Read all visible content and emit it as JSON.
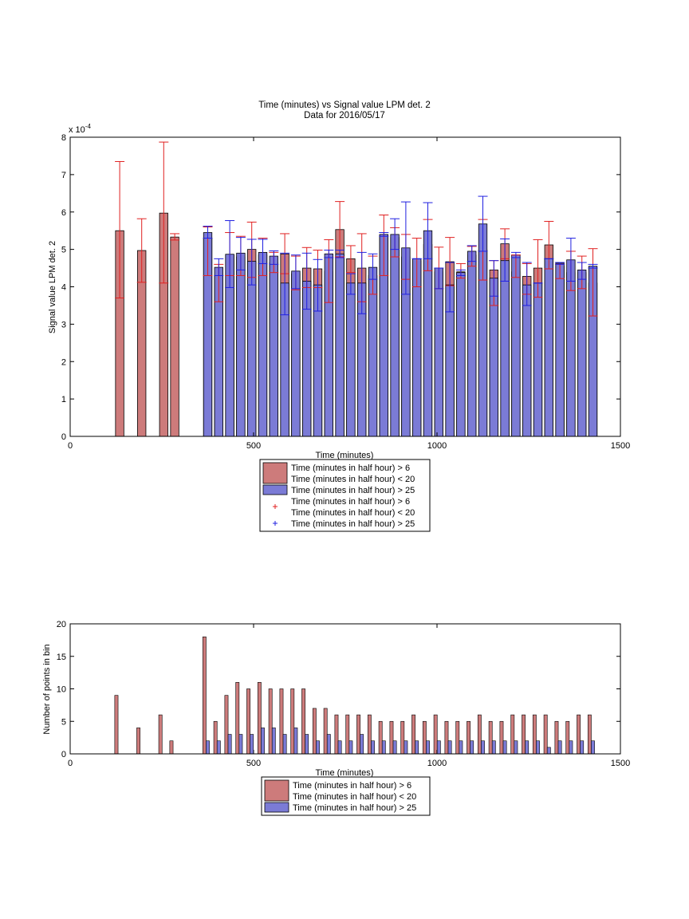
{
  "chart_data": [
    {
      "type": "bar",
      "title": "Time (minutes) vs Signal value LPM det. 2",
      "subtitle": "Data for 2016/05/17",
      "xlabel": "Time (minutes)",
      "ylabel": "Signal value LPM det. 2",
      "y_exponent": "x 10",
      "y_exponent_power": "-4",
      "xlim": [
        0,
        1500
      ],
      "ylim": [
        0,
        8
      ],
      "x_ticks": [
        0,
        500,
        1000,
        1500
      ],
      "y_ticks": [
        0,
        1,
        2,
        3,
        4,
        5,
        6,
        7,
        8
      ],
      "grid": false,
      "legend_placement": "below",
      "colors": {
        "red_bar": "#cd7b7b",
        "blue_bar": "#7b7bd6",
        "red_err": "#e02020",
        "blue_err": "#2020e0"
      },
      "legend": [
        {
          "kind": "bar",
          "color": "#cd7b7b",
          "lines": [
            "Time (minutes in half hour) > 6",
            "Time (minutes in half hour) < 20"
          ]
        },
        {
          "kind": "bar",
          "color": "#7b7bd6",
          "lines": [
            "Time (minutes in half hour) > 25"
          ]
        },
        {
          "kind": "marker",
          "color": "#e02020",
          "lines": [
            "Time (minutes in half hour) > 6",
            "Time (minutes in half hour) < 20"
          ]
        },
        {
          "kind": "marker",
          "color": "#2020e0",
          "lines": [
            "Time (minutes in half hour) > 25"
          ]
        }
      ],
      "series": [
        {
          "color_key": "red",
          "points": [
            {
              "x": 135,
              "y": 5.5,
              "lo": 3.7,
              "hi": 7.35
            },
            {
              "x": 195,
              "y": 4.97,
              "lo": 4.12,
              "hi": 5.82
            },
            {
              "x": 255,
              "y": 5.97,
              "lo": 4.1,
              "hi": 7.87
            },
            {
              "x": 285,
              "y": 5.33,
              "lo": 5.25,
              "hi": 5.42
            },
            {
              "x": 375,
              "y": 5.3,
              "lo": 4.3,
              "hi": 5.6
            },
            {
              "x": 405,
              "y": 4.28,
              "lo": 3.6,
              "hi": 4.6
            },
            {
              "x": 435,
              "y": 4.85,
              "lo": 4.3,
              "hi": 5.45
            },
            {
              "x": 465,
              "y": 4.8,
              "lo": 4.3,
              "hi": 5.35
            },
            {
              "x": 495,
              "y": 5.0,
              "lo": 4.25,
              "hi": 5.73
            },
            {
              "x": 525,
              "y": 4.85,
              "lo": 4.3,
              "hi": 5.3
            },
            {
              "x": 555,
              "y": 4.65,
              "lo": 4.38,
              "hi": 4.92
            },
            {
              "x": 585,
              "y": 4.88,
              "lo": 4.35,
              "hi": 5.42
            },
            {
              "x": 615,
              "y": 4.35,
              "lo": 3.92,
              "hi": 4.82
            },
            {
              "x": 645,
              "y": 4.5,
              "lo": 3.98,
              "hi": 5.05
            },
            {
              "x": 675,
              "y": 4.48,
              "lo": 3.98,
              "hi": 4.98
            },
            {
              "x": 705,
              "y": 4.42,
              "lo": 3.58,
              "hi": 5.26
            },
            {
              "x": 735,
              "y": 5.53,
              "lo": 4.8,
              "hi": 6.28
            },
            {
              "x": 765,
              "y": 4.75,
              "lo": 4.38,
              "hi": 5.1
            },
            {
              "x": 795,
              "y": 4.5,
              "lo": 3.6,
              "hi": 5.42
            },
            {
              "x": 825,
              "y": 4.3,
              "lo": 3.8,
              "hi": 4.82
            },
            {
              "x": 855,
              "y": 5.38,
              "lo": 4.3,
              "hi": 5.92
            },
            {
              "x": 885,
              "y": 5.32,
              "lo": 4.8,
              "hi": 5.58
            },
            {
              "x": 915,
              "y": 4.8,
              "lo": 4.2,
              "hi": 5.4
            },
            {
              "x": 945,
              "y": 4.7,
              "lo": 4.0,
              "hi": 5.3
            },
            {
              "x": 975,
              "y": 5.13,
              "lo": 4.43,
              "hi": 5.8
            },
            {
              "x": 1005,
              "y": 4.4,
              "lo": 3.95,
              "hi": 5.06
            },
            {
              "x": 1035,
              "y": 4.67,
              "lo": 4.03,
              "hi": 5.32
            },
            {
              "x": 1065,
              "y": 4.4,
              "lo": 4.23,
              "hi": 4.62
            },
            {
              "x": 1095,
              "y": 4.85,
              "lo": 4.55,
              "hi": 5.08
            },
            {
              "x": 1125,
              "y": 4.98,
              "lo": 4.18,
              "hi": 5.8
            },
            {
              "x": 1155,
              "y": 4.45,
              "lo": 3.5,
              "hi": 4.7
            },
            {
              "x": 1185,
              "y": 5.15,
              "lo": 4.75,
              "hi": 5.55
            },
            {
              "x": 1215,
              "y": 4.4,
              "lo": 4.25,
              "hi": 4.85
            },
            {
              "x": 1245,
              "y": 4.28,
              "lo": 3.8,
              "hi": 4.62
            },
            {
              "x": 1275,
              "y": 4.5,
              "lo": 3.72,
              "hi": 5.26
            },
            {
              "x": 1305,
              "y": 5.12,
              "lo": 4.48,
              "hi": 5.75
            },
            {
              "x": 1335,
              "y": 4.55,
              "lo": 4.22,
              "hi": 4.6
            },
            {
              "x": 1365,
              "y": 4.38,
              "lo": 3.9,
              "hi": 4.95
            },
            {
              "x": 1395,
              "y": 4.38,
              "lo": 3.95,
              "hi": 4.82
            },
            {
              "x": 1425,
              "y": 4.1,
              "lo": 3.22,
              "hi": 5.02
            }
          ]
        },
        {
          "color_key": "blue",
          "points": [
            {
              "x": 375,
              "y": 5.45,
              "lo": 5.3,
              "hi": 5.62
            },
            {
              "x": 405,
              "y": 4.52,
              "lo": 4.3,
              "hi": 4.75
            },
            {
              "x": 435,
              "y": 4.87,
              "lo": 3.98,
              "hi": 5.77
            },
            {
              "x": 465,
              "y": 4.9,
              "lo": 4.45,
              "hi": 5.32
            },
            {
              "x": 495,
              "y": 4.68,
              "lo": 4.05,
              "hi": 5.27
            },
            {
              "x": 525,
              "y": 4.92,
              "lo": 4.62,
              "hi": 5.27
            },
            {
              "x": 555,
              "y": 4.82,
              "lo": 4.6,
              "hi": 4.96
            },
            {
              "x": 585,
              "y": 4.1,
              "lo": 3.25,
              "hi": 4.9
            },
            {
              "x": 615,
              "y": 4.42,
              "lo": 3.95,
              "hi": 4.85
            },
            {
              "x": 645,
              "y": 4.15,
              "lo": 3.4,
              "hi": 4.9
            },
            {
              "x": 675,
              "y": 4.05,
              "lo": 3.35,
              "hi": 4.73
            },
            {
              "x": 705,
              "y": 4.88,
              "lo": 4.78,
              "hi": 4.98
            },
            {
              "x": 735,
              "y": 4.88,
              "lo": 4.78,
              "hi": 4.98
            },
            {
              "x": 765,
              "y": 4.1,
              "lo": 3.8,
              "hi": 4.35
            },
            {
              "x": 795,
              "y": 4.1,
              "lo": 3.28,
              "hi": 4.92
            },
            {
              "x": 825,
              "y": 4.52,
              "lo": 4.2,
              "hi": 4.88
            },
            {
              "x": 855,
              "y": 5.4,
              "lo": 5.35,
              "hi": 5.45
            },
            {
              "x": 885,
              "y": 5.4,
              "lo": 5.0,
              "hi": 5.82
            },
            {
              "x": 915,
              "y": 5.04,
              "lo": 3.8,
              "hi": 6.27
            },
            {
              "x": 945,
              "y": 4.75,
              "lo": 4.75,
              "hi": 4.75
            },
            {
              "x": 975,
              "y": 5.5,
              "lo": 4.75,
              "hi": 6.25
            },
            {
              "x": 1005,
              "y": 4.5,
              "lo": 3.95,
              "hi": 4.5
            },
            {
              "x": 1035,
              "y": 4.05,
              "lo": 3.33,
              "hi": 4.65
            },
            {
              "x": 1065,
              "y": 4.38,
              "lo": 4.3,
              "hi": 4.45
            },
            {
              "x": 1095,
              "y": 4.95,
              "lo": 4.68,
              "hi": 5.1
            },
            {
              "x": 1125,
              "y": 5.68,
              "lo": 4.95,
              "hi": 6.42
            },
            {
              "x": 1155,
              "y": 4.23,
              "lo": 3.75,
              "hi": 4.7
            },
            {
              "x": 1185,
              "y": 4.7,
              "lo": 4.15,
              "hi": 5.28
            },
            {
              "x": 1215,
              "y": 4.85,
              "lo": 4.78,
              "hi": 4.92
            },
            {
              "x": 1245,
              "y": 4.05,
              "lo": 3.5,
              "hi": 4.65
            },
            {
              "x": 1275,
              "y": 4.1,
              "lo": 4.1,
              "hi": 4.1
            },
            {
              "x": 1305,
              "y": 4.75,
              "lo": 4.75,
              "hi": 4.75
            },
            {
              "x": 1335,
              "y": 4.63,
              "lo": 4.6,
              "hi": 4.65
            },
            {
              "x": 1365,
              "y": 4.72,
              "lo": 4.15,
              "hi": 5.3
            },
            {
              "x": 1395,
              "y": 4.45,
              "lo": 4.2,
              "hi": 4.65
            },
            {
              "x": 1425,
              "y": 4.55,
              "lo": 4.5,
              "hi": 4.6
            }
          ]
        }
      ]
    },
    {
      "type": "bar",
      "title": "",
      "xlabel": "Time (minutes)",
      "ylabel": "Number of points in bin",
      "xlim": [
        0,
        1500
      ],
      "ylim": [
        0,
        20
      ],
      "x_ticks": [
        0,
        500,
        1000,
        1500
      ],
      "y_ticks": [
        0,
        5,
        10,
        15,
        20
      ],
      "grid": false,
      "legend_placement": "below",
      "legend": [
        {
          "kind": "bar",
          "color": "#cd7b7b",
          "lines": [
            "Time (minutes in half hour) > 6",
            "Time (minutes in half hour) < 20"
          ]
        },
        {
          "kind": "bar",
          "color": "#7b7bd6",
          "lines": [
            "Time (minutes in half hour) > 25"
          ]
        }
      ],
      "series": [
        {
          "color_key": "red",
          "x": [
            126,
            186,
            246,
            276,
            366,
            396,
            426,
            456,
            486,
            516,
            546,
            576,
            606,
            636,
            666,
            696,
            726,
            756,
            786,
            816,
            846,
            876,
            906,
            936,
            966,
            996,
            1026,
            1056,
            1086,
            1116,
            1146,
            1176,
            1206,
            1236,
            1266,
            1296,
            1326,
            1356,
            1386,
            1416
          ],
          "values": [
            9,
            4,
            6,
            2,
            18,
            5,
            9,
            11,
            10,
            11,
            10,
            10,
            10,
            10,
            7,
            7,
            6,
            6,
            6,
            6,
            5,
            5,
            5,
            6,
            5,
            6,
            5,
            5,
            5,
            6,
            5,
            5,
            6,
            6,
            6,
            6,
            5,
            5,
            6,
            6
          ]
        },
        {
          "color_key": "blue",
          "x": [
            375,
            405,
            435,
            465,
            495,
            525,
            555,
            585,
            615,
            645,
            675,
            705,
            735,
            765,
            795,
            825,
            855,
            885,
            915,
            945,
            975,
            1005,
            1035,
            1065,
            1095,
            1125,
            1155,
            1185,
            1215,
            1245,
            1275,
            1305,
            1335,
            1365,
            1395,
            1425
          ],
          "values": [
            2,
            2,
            3,
            3,
            3,
            4,
            4,
            3,
            4,
            3,
            2,
            3,
            2,
            2,
            3,
            2,
            2,
            2,
            2,
            2,
            2,
            2,
            2,
            2,
            2,
            2,
            2,
            2,
            2,
            2,
            2,
            1,
            2,
            2,
            2,
            2
          ]
        }
      ]
    }
  ]
}
